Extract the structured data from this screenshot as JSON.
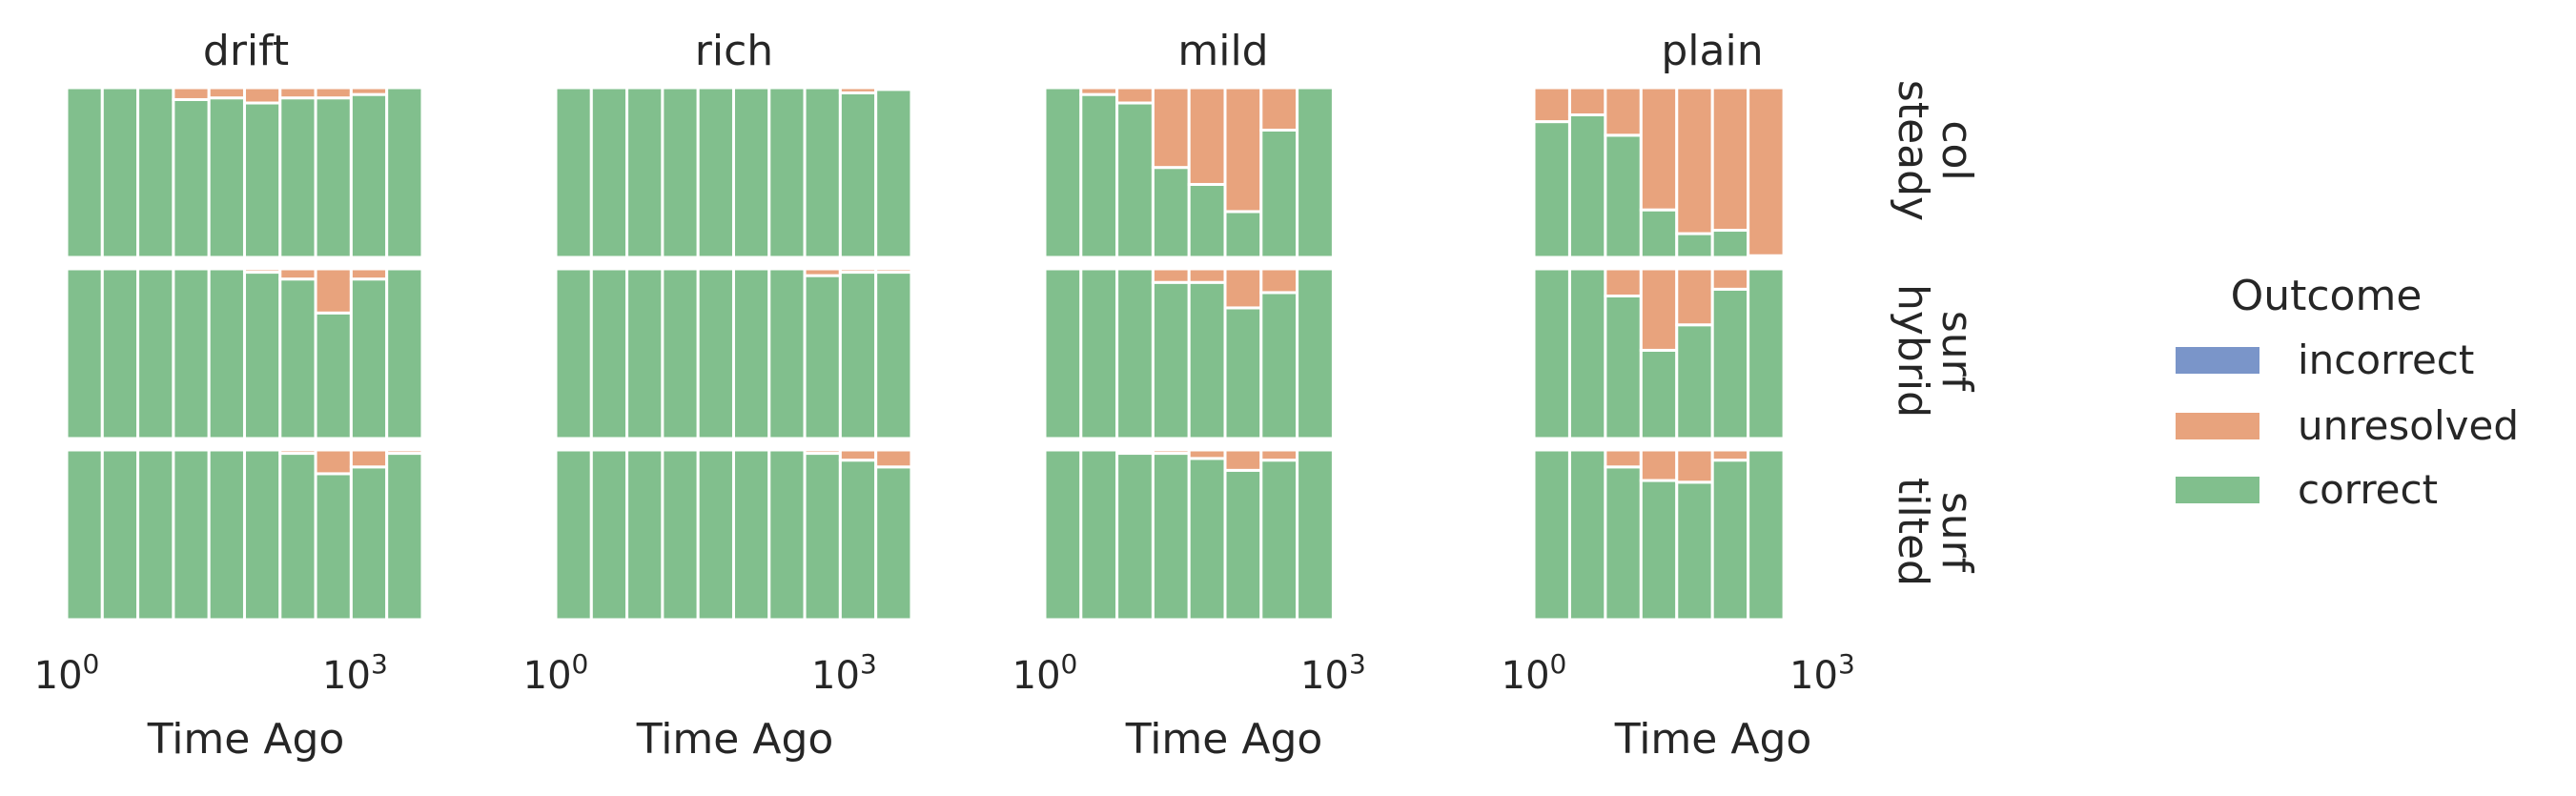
{
  "chart_data": {
    "type": "bar",
    "stacked": "normalized",
    "x_scale": "log",
    "x_tick_labels": [
      {
        "base": "10",
        "exp": "0",
        "value": 1
      },
      {
        "base": "10",
        "exp": "3",
        "value": 1000
      }
    ],
    "xlabel": "Time Ago",
    "columns": [
      "drift",
      "rich",
      "mild",
      "plain"
    ],
    "rows": [
      {
        "label_top": "col",
        "label_bottom": "steady"
      },
      {
        "label_top": "surf",
        "label_bottom": "hybrid"
      },
      {
        "label_top": "surf",
        "label_bottom": "tilted"
      }
    ],
    "stack_order": [
      "correct",
      "unresolved",
      "incorrect"
    ],
    "colors": {
      "correct": "#81bf8d",
      "unresolved": "#e8a37d",
      "incorrect": "#7a95c9"
    },
    "legend": {
      "title": "Outcome",
      "placement": "right",
      "items": [
        {
          "key": "incorrect",
          "label": "incorrect"
        },
        {
          "key": "unresolved",
          "label": "unresolved"
        },
        {
          "key": "correct",
          "label": "correct"
        }
      ]
    },
    "panels": [
      [
        {
          "bins_log10": [
            0,
            3.7
          ],
          "correct": [
            1,
            1,
            1,
            0.93,
            0.94,
            0.91,
            0.94,
            0.94,
            0.96,
            1
          ],
          "unresolved": [
            0,
            0,
            0,
            0.07,
            0.06,
            0.09,
            0.06,
            0.06,
            0.04,
            0
          ]
        },
        {
          "bins_log10": [
            0,
            3.7
          ],
          "correct": [
            1,
            1,
            1,
            1,
            1,
            1,
            1,
            1,
            0.97,
            0.99
          ],
          "unresolved": [
            0,
            0,
            0,
            0,
            0,
            0,
            0,
            0,
            0.03,
            0.01
          ]
        },
        {
          "bins_log10": [
            0,
            3.0
          ],
          "correct": [
            1,
            0.96,
            0.91,
            0.53,
            0.43,
            0.27,
            0.75,
            1
          ],
          "unresolved": [
            0,
            0.04,
            0.09,
            0.47,
            0.57,
            0.73,
            0.25,
            0
          ]
        },
        {
          "bins_log10": [
            0,
            2.6
          ],
          "correct": [
            0.8,
            0.84,
            0.72,
            0.28,
            0.14,
            0.16,
            0.01
          ],
          "unresolved": [
            0.2,
            0.16,
            0.28,
            0.72,
            0.86,
            0.84,
            0.99
          ]
        }
      ],
      [
        {
          "bins_log10": [
            0,
            3.7
          ],
          "correct": [
            1,
            1,
            1,
            1,
            1,
            0.98,
            0.94,
            0.74,
            0.94,
            1
          ],
          "unresolved": [
            0,
            0,
            0,
            0,
            0,
            0.02,
            0.06,
            0.26,
            0.06,
            0
          ]
        },
        {
          "bins_log10": [
            0,
            3.7
          ],
          "correct": [
            1,
            1,
            1,
            1,
            1,
            1,
            1,
            0.96,
            0.98,
            0.98
          ],
          "unresolved": [
            0,
            0,
            0,
            0,
            0,
            0,
            0,
            0.04,
            0.02,
            0.02
          ]
        },
        {
          "bins_log10": [
            0,
            3.0
          ],
          "correct": [
            1,
            1,
            1,
            0.92,
            0.92,
            0.77,
            0.86,
            1
          ],
          "unresolved": [
            0,
            0,
            0,
            0.08,
            0.08,
            0.23,
            0.14,
            0
          ]
        },
        {
          "bins_log10": [
            0,
            2.6
          ],
          "correct": [
            1,
            1,
            0.84,
            0.52,
            0.67,
            0.88,
            1
          ],
          "unresolved": [
            0,
            0,
            0.16,
            0.48,
            0.33,
            0.12,
            0
          ]
        }
      ],
      [
        {
          "bins_log10": [
            0,
            3.7
          ],
          "correct": [
            1,
            1,
            1,
            1,
            1,
            1,
            0.98,
            0.86,
            0.9,
            0.98
          ],
          "unresolved": [
            0,
            0,
            0,
            0,
            0,
            0,
            0.02,
            0.14,
            0.1,
            0.02
          ]
        },
        {
          "bins_log10": [
            0,
            3.7
          ],
          "correct": [
            1,
            1,
            1,
            1,
            1,
            1,
            1,
            0.98,
            0.94,
            0.9
          ],
          "unresolved": [
            0,
            0,
            0,
            0,
            0,
            0,
            0,
            0.02,
            0.06,
            0.1
          ]
        },
        {
          "bins_log10": [
            0,
            3.0
          ],
          "correct": [
            1,
            1,
            0.98,
            0.98,
            0.95,
            0.88,
            0.94,
            1
          ],
          "unresolved": [
            0,
            0,
            0,
            0.02,
            0.05,
            0.12,
            0.06,
            0
          ]
        },
        {
          "bins_log10": [
            0,
            2.6
          ],
          "correct": [
            1,
            1,
            0.9,
            0.82,
            0.81,
            0.94,
            1
          ],
          "unresolved": [
            0,
            0,
            0.1,
            0.18,
            0.19,
            0.06,
            0
          ]
        }
      ]
    ]
  }
}
